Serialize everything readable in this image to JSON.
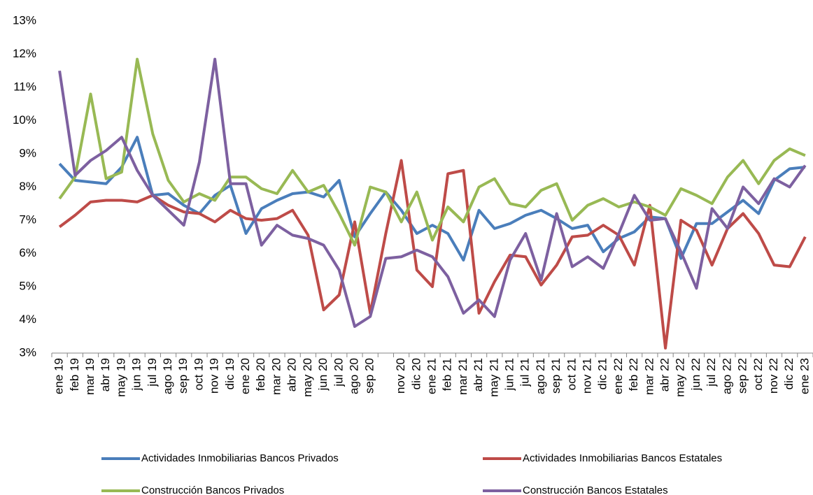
{
  "chart_data": {
    "type": "line",
    "categories": [
      "ene 19",
      "feb 19",
      "mar 19",
      "abr 19",
      "may 19",
      "jun 19",
      "jul 19",
      "ago 19",
      "sep 19",
      "oct 19",
      "nov 19",
      "dic 19",
      "ene 20",
      "feb 20",
      "mar 20",
      "abr 20",
      "may 20",
      "jun 20",
      "jul 20",
      "ago 20",
      "sep 20",
      null,
      "nov 20",
      "dic 20",
      "ene 21",
      "feb 21",
      "mar 21",
      "abr 21",
      "may 21",
      "jun 21",
      "jul 21",
      "ago 21",
      "sep 21",
      "oct 21",
      "nov 21",
      "dic 21",
      "ene 22",
      "feb 22",
      "mar 22",
      "abr 22",
      "may 22",
      "jun 22",
      "jul 22",
      "ago 22",
      "sep 22",
      "oct 22",
      "nov 22",
      "dic 22",
      "ene 23"
    ],
    "series": [
      {
        "name": "Actividades Inmobiliarias Bancos Privados",
        "color": "#4a7ebb",
        "values": [
          8.7,
          8.2,
          8.15,
          8.1,
          8.6,
          9.5,
          7.75,
          7.8,
          7.45,
          7.2,
          7.75,
          8.05,
          6.6,
          7.35,
          7.6,
          7.8,
          7.85,
          7.7,
          8.2,
          6.5,
          7.2,
          7.85,
          7.3,
          6.6,
          6.85,
          6.6,
          5.8,
          7.3,
          6.75,
          6.9,
          7.15,
          7.3,
          7.05,
          6.75,
          6.85,
          6.05,
          6.45,
          6.65,
          7.1,
          7.05,
          5.85,
          6.9,
          6.9,
          7.25,
          7.6,
          7.2,
          8.2,
          8.55,
          8.6
        ]
      },
      {
        "name": "Actividades Inmobiliarias Bancos Estatales",
        "color": "#be4b48",
        "values": [
          6.8,
          7.15,
          7.55,
          7.6,
          7.6,
          7.55,
          7.75,
          7.45,
          7.25,
          7.2,
          6.95,
          7.3,
          7.05,
          7.0,
          7.05,
          7.3,
          6.55,
          4.3,
          4.75,
          6.95,
          4.2,
          6.6,
          8.8,
          5.5,
          5.0,
          8.4,
          8.5,
          4.2,
          5.15,
          5.95,
          5.9,
          5.05,
          5.65,
          6.5,
          6.55,
          6.85,
          6.55,
          5.65,
          7.45,
          3.15,
          7.0,
          6.7,
          5.65,
          6.75,
          7.2,
          6.6,
          5.65,
          5.6,
          6.5
        ]
      },
      {
        "name": "Construcción Bancos Privados",
        "color": "#98b954",
        "values": [
          7.65,
          8.3,
          10.8,
          8.25,
          8.45,
          11.85,
          9.6,
          8.2,
          7.55,
          7.8,
          7.6,
          8.3,
          8.3,
          7.95,
          7.8,
          8.5,
          7.85,
          8.05,
          7.2,
          6.25,
          8.0,
          7.85,
          6.95,
          7.85,
          6.4,
          7.4,
          6.95,
          8.0,
          8.25,
          7.5,
          7.4,
          7.9,
          8.1,
          7.0,
          7.45,
          7.65,
          7.4,
          7.55,
          7.4,
          7.15,
          7.95,
          7.75,
          7.5,
          8.3,
          8.8,
          8.1,
          8.8,
          9.15,
          8.95
        ]
      },
      {
        "name": "Construcción Bancos Estatales",
        "color": "#7d60a0",
        "values": [
          11.5,
          8.35,
          8.8,
          9.1,
          9.5,
          8.5,
          7.75,
          7.3,
          6.85,
          8.75,
          11.85,
          8.1,
          8.1,
          6.25,
          6.85,
          6.55,
          6.45,
          6.25,
          5.5,
          3.8,
          4.1,
          5.85,
          5.9,
          6.1,
          5.9,
          5.3,
          4.2,
          4.6,
          4.1,
          5.8,
          6.6,
          5.2,
          7.2,
          5.6,
          5.9,
          5.55,
          6.6,
          7.75,
          7.0,
          7.05,
          6.05,
          4.95,
          7.35,
          6.75,
          8.0,
          7.5,
          8.25,
          8.0,
          8.65
        ]
      }
    ],
    "ylim": [
      3,
      13
    ],
    "yticks": [
      {
        "value": 3,
        "label": "3%"
      },
      {
        "value": 4,
        "label": "4%"
      },
      {
        "value": 5,
        "label": "5%"
      },
      {
        "value": 6,
        "label": "6%"
      },
      {
        "value": 7,
        "label": "7%"
      },
      {
        "value": 8,
        "label": "8%"
      },
      {
        "value": 9,
        "label": "9%"
      },
      {
        "value": 10,
        "label": "10%"
      },
      {
        "value": 11,
        "label": "11%"
      },
      {
        "value": 12,
        "label": "12%"
      },
      {
        "value": 13,
        "label": "13%"
      }
    ],
    "grid": false,
    "legend": "bottom"
  }
}
